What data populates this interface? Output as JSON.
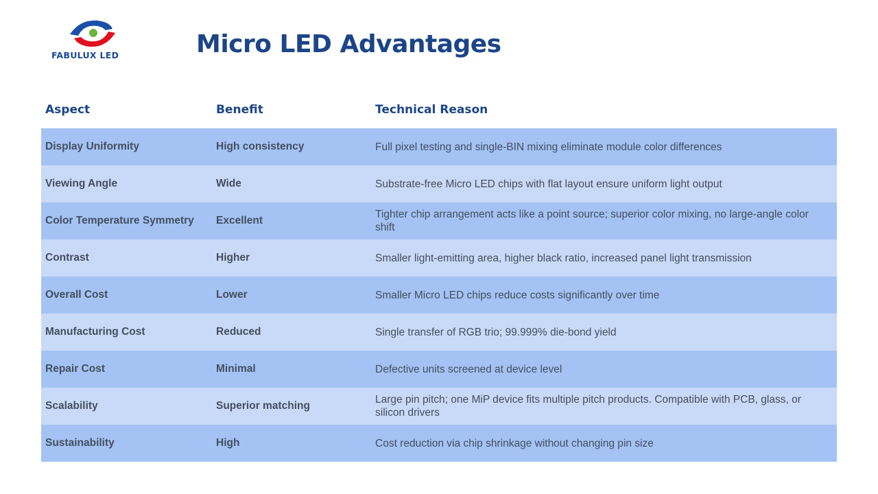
{
  "logo": {
    "text": "FABULUX LED"
  },
  "title": "Micro LED Advantages",
  "table": {
    "headers": [
      "Aspect",
      "Benefit",
      "Technical Reason"
    ],
    "rows": [
      [
        "Display Uniformity",
        "High consistency",
        "Full pixel testing and single-BIN mixing eliminate module color differences"
      ],
      [
        "Viewing Angle",
        "Wide",
        "Substrate-free Micro LED chips with flat layout ensure uniform light output"
      ],
      [
        "Color Temperature Symmetry",
        "Excellent",
        "Tighter chip arrangement acts like a point source; superior color mixing, no large-angle color shift"
      ],
      [
        "Contrast",
        "Higher",
        "Smaller light-emitting area, higher black ratio, increased panel light transmission"
      ],
      [
        "Overall Cost",
        "Lower",
        "Smaller Micro LED chips reduce costs significantly over time"
      ],
      [
        "Manufacturing Cost",
        "Reduced",
        "Single transfer of RGB trio; 99.999% die-bond yield"
      ],
      [
        "Repair Cost",
        "Minimal",
        "Defective units screened at device level"
      ],
      [
        "Scalability",
        "Superior matching",
        "Large pin pitch; one MiP device fits multiple pitch products. Compatible with PCB, glass, or silicon drivers"
      ],
      [
        "Sustainability",
        "High",
        "Cost reduction via chip shrinkage without changing pin size"
      ]
    ]
  }
}
